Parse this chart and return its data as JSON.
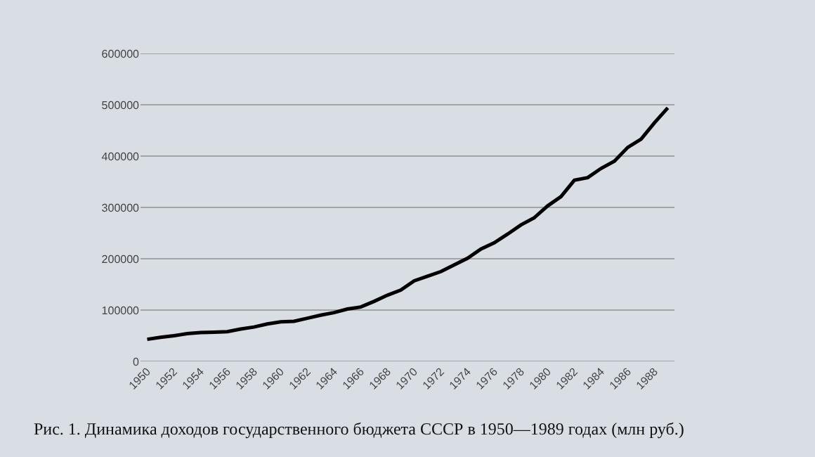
{
  "chart_data": {
    "type": "line",
    "x": [
      1950,
      1951,
      1952,
      1953,
      1954,
      1955,
      1956,
      1957,
      1958,
      1959,
      1960,
      1961,
      1962,
      1963,
      1964,
      1965,
      1966,
      1967,
      1968,
      1969,
      1970,
      1971,
      1972,
      1973,
      1974,
      1975,
      1976,
      1977,
      1978,
      1979,
      1980,
      1981,
      1982,
      1983,
      1984,
      1985,
      1986,
      1987,
      1988,
      1989
    ],
    "series": [
      {
        "color": "#000000",
        "values": [
          43000,
          47000,
          50000,
          54000,
          56000,
          57000,
          58000,
          63000,
          67000,
          73000,
          77000,
          78000,
          84000,
          90000,
          95000,
          102000,
          106000,
          117000,
          129000,
          139000,
          157000,
          166000,
          175000,
          188000,
          201000,
          219000,
          231000,
          248000,
          266000,
          280000,
          303000,
          321000,
          353000,
          358000,
          376000,
          390000,
          417000,
          433000,
          465000,
          494000
        ]
      }
    ],
    "xlim": [
      1949.5,
      1989.5
    ],
    "xticks": [
      1950,
      1952,
      1954,
      1956,
      1958,
      1960,
      1962,
      1964,
      1966,
      1968,
      1970,
      1972,
      1974,
      1976,
      1978,
      1980,
      1982,
      1984,
      1986,
      1988
    ],
    "ylim": [
      0,
      600000
    ],
    "yticks": [
      0,
      100000,
      200000,
      300000,
      400000,
      500000,
      600000
    ],
    "grid": "y",
    "marker": "none",
    "line_style": "solid",
    "annotations": [
      "Рис. 1. Динамика доходов государственного бюджета СССР в 1950—1989 годах (млн руб.)"
    ]
  }
}
